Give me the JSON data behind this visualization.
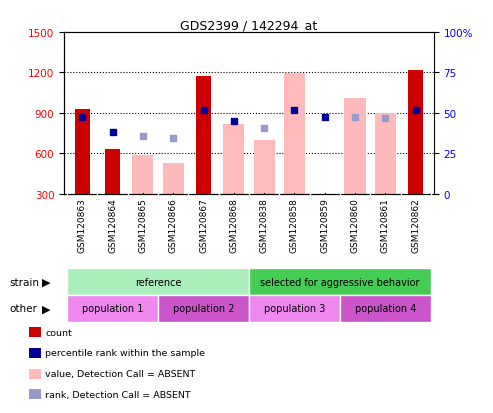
{
  "title": "GDS2399 / 142294_at",
  "samples": [
    "GSM120863",
    "GSM120864",
    "GSM120865",
    "GSM120866",
    "GSM120867",
    "GSM120868",
    "GSM120838",
    "GSM120858",
    "GSM120859",
    "GSM120860",
    "GSM120861",
    "GSM120862"
  ],
  "count_values": [
    930,
    630,
    null,
    null,
    1175,
    null,
    null,
    null,
    null,
    null,
    null,
    1215
  ],
  "count_absent_values": [
    null,
    null,
    590,
    530,
    null,
    820,
    700,
    1195,
    null,
    1010,
    900,
    null
  ],
  "rank_present_values": [
    870,
    760,
    null,
    null,
    920,
    840,
    null,
    920,
    870,
    null,
    null,
    920
  ],
  "rank_absent_values": [
    null,
    null,
    730,
    710,
    null,
    null,
    790,
    null,
    null,
    870,
    860,
    null
  ],
  "ylim_left": [
    300,
    1500
  ],
  "ylim_right": [
    0,
    100
  ],
  "yticks_left": [
    300,
    600,
    900,
    1200,
    1500
  ],
  "yticks_right": [
    0,
    25,
    50,
    75,
    100
  ],
  "strain_groups": [
    {
      "label": "reference",
      "start": 0,
      "end": 6,
      "color": "#aaeebb"
    },
    {
      "label": "selected for aggressive behavior",
      "start": 6,
      "end": 12,
      "color": "#44cc55"
    }
  ],
  "other_groups": [
    {
      "label": "population 1",
      "start": 0,
      "end": 3,
      "color": "#ee88ee"
    },
    {
      "label": "population 2",
      "start": 3,
      "end": 6,
      "color": "#cc55cc"
    },
    {
      "label": "population 3",
      "start": 6,
      "end": 9,
      "color": "#ee88ee"
    },
    {
      "label": "population 4",
      "start": 9,
      "end": 12,
      "color": "#cc55cc"
    }
  ],
  "bar_width": 0.5,
  "colors": {
    "count_present": "#CC0000",
    "count_absent": "#FFBBBB",
    "rank_present": "#000099",
    "rank_absent": "#9999CC"
  },
  "legend_items": [
    {
      "label": "count",
      "color": "#CC0000"
    },
    {
      "label": "percentile rank within the sample",
      "color": "#000099"
    },
    {
      "label": "value, Detection Call = ABSENT",
      "color": "#FFBBBB"
    },
    {
      "label": "rank, Detection Call = ABSENT",
      "color": "#9999CC"
    }
  ]
}
